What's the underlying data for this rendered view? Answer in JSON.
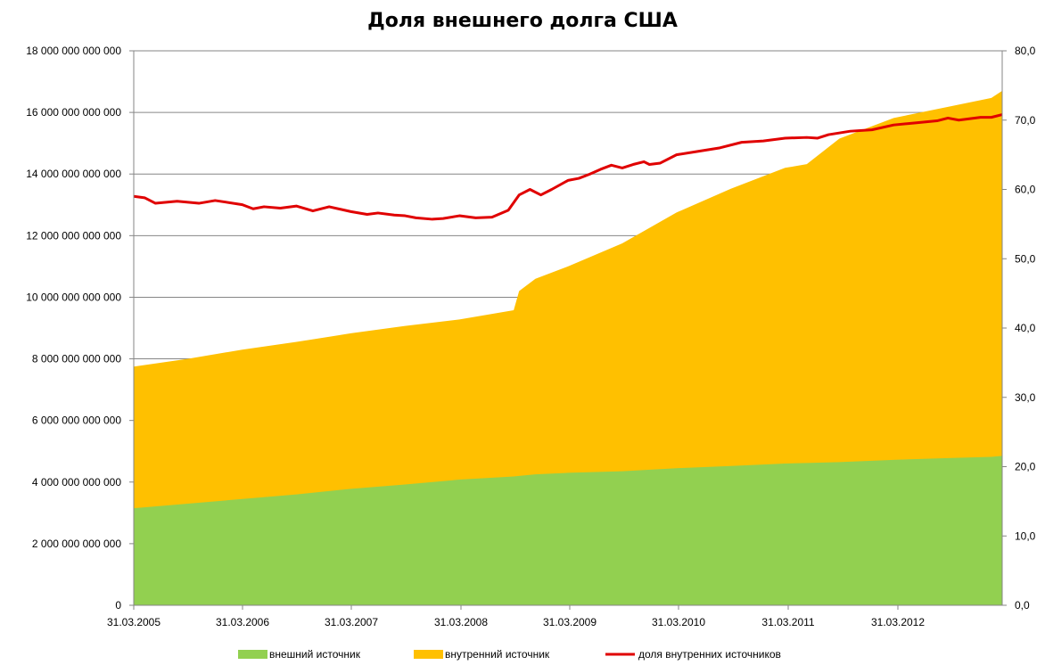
{
  "chart_data": {
    "type": "area",
    "title": "Доля внешнего долга США",
    "x_tick_labels": [
      "31.03.2005",
      "31.03.2006",
      "31.03.2007",
      "31.03.2008",
      "31.03.2009",
      "31.03.2010",
      "31.03.2011",
      "31.03.2012"
    ],
    "x_range": [
      2005.0,
      2013.0
    ],
    "y_left_tick_labels": [
      "0",
      "2 000 000 000 000",
      "4 000 000 000 000",
      "6 000 000 000 000",
      "8 000 000 000 000",
      "10 000 000 000 000",
      "12 000 000 000 000",
      "14 000 000 000 000",
      "16 000 000 000 000",
      "18 000 000 000 000"
    ],
    "y_left_range": [
      0,
      18000000000000
    ],
    "y_right_tick_labels": [
      "0,0",
      "10,0",
      "20,0",
      "30,0",
      "40,0",
      "50,0",
      "60,0",
      "70,0",
      "80,0"
    ],
    "y_right_range": [
      0,
      80
    ],
    "grid": "horizontal",
    "legend_position": "bottom",
    "x": [
      2005.0,
      2005.5,
      2006.0,
      2006.5,
      2007.0,
      2007.5,
      2008.0,
      2008.5,
      2008.55,
      2008.7,
      2009.0,
      2009.5,
      2010.0,
      2010.5,
      2011.0,
      2011.2,
      2011.5,
      2012.0,
      2012.5,
      2012.9,
      2013.0
    ],
    "series": [
      {
        "name": "внешний источник",
        "kind": "area",
        "color": "#92d050",
        "values": [
          3150000000000,
          3300000000000,
          3450000000000,
          3600000000000,
          3780000000000,
          3920000000000,
          4080000000000,
          4180000000000,
          4200000000000,
          4250000000000,
          4300000000000,
          4350000000000,
          4450000000000,
          4520000000000,
          4600000000000,
          4620000000000,
          4650000000000,
          4720000000000,
          4780000000000,
          4820000000000,
          4850000000000
        ]
      },
      {
        "name": "внутренний источник",
        "kind": "area",
        "color": "#ffc000",
        "values": [
          4600000000000,
          4700000000000,
          4850000000000,
          4950000000000,
          5050000000000,
          5150000000000,
          5200000000000,
          5400000000000,
          6000000000000,
          6350000000000,
          6700000000000,
          7400000000000,
          8300000000000,
          9000000000000,
          9600000000000,
          9700000000000,
          10500000000000,
          11100000000000,
          11400000000000,
          11650000000000,
          11850000000000
        ]
      },
      {
        "name": "доля внутренних источников",
        "kind": "line",
        "axis": "right",
        "color": "#e00000",
        "x": [
          2005.0,
          2005.1,
          2005.2,
          2005.4,
          2005.6,
          2005.75,
          2006.0,
          2006.1,
          2006.2,
          2006.35,
          2006.5,
          2006.65,
          2006.8,
          2007.0,
          2007.15,
          2007.25,
          2007.4,
          2007.5,
          2007.6,
          2007.75,
          2007.85,
          2008.0,
          2008.15,
          2008.3,
          2008.45,
          2008.55,
          2008.65,
          2008.75,
          2008.85,
          2009.0,
          2009.1,
          2009.2,
          2009.3,
          2009.4,
          2009.5,
          2009.6,
          2009.7,
          2009.75,
          2009.85,
          2010.0,
          2010.2,
          2010.4,
          2010.6,
          2010.8,
          2011.0,
          2011.2,
          2011.3,
          2011.4,
          2011.6,
          2011.8,
          2012.0,
          2012.2,
          2012.4,
          2012.5,
          2012.6,
          2012.8,
          2012.9,
          2013.0
        ],
        "values": [
          59.0,
          58.8,
          58.0,
          58.3,
          58.0,
          58.4,
          57.8,
          57.2,
          57.5,
          57.3,
          57.6,
          56.9,
          57.5,
          56.8,
          56.4,
          56.6,
          56.3,
          56.2,
          55.9,
          55.7,
          55.8,
          56.2,
          55.9,
          56.0,
          57.0,
          59.2,
          60.0,
          59.2,
          60.0,
          61.3,
          61.6,
          62.2,
          62.9,
          63.5,
          63.1,
          63.6,
          64.0,
          63.6,
          63.8,
          65.0,
          65.5,
          66.0,
          66.8,
          67.0,
          67.4,
          67.5,
          67.4,
          67.9,
          68.4,
          68.6,
          69.3,
          69.6,
          69.9,
          70.3,
          70.0,
          70.4,
          70.4,
          70.8
        ]
      }
    ]
  }
}
